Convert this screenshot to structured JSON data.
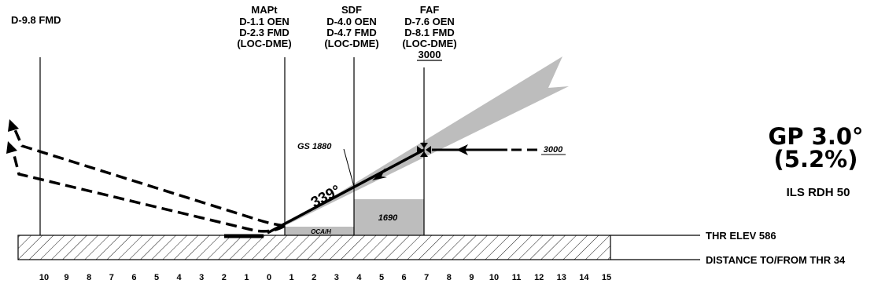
{
  "fixes": {
    "d98": {
      "line1": "D-9.8 FMD"
    },
    "mapt": {
      "line1": "MAPt",
      "line2": "D-1.1 OEN",
      "line3": "D-2.3 FMD",
      "line4": "(LOC-DME)"
    },
    "sdf": {
      "line1": "SDF",
      "line2": "D-4.0 OEN",
      "line3": "D-4.7 FMD",
      "line4": "(LOC-DME)"
    },
    "faf": {
      "line1": "FAF",
      "line2": "D-7.6 OEN",
      "line3": "D-8.1 FMD",
      "line4": "(LOC-DME)",
      "altitude": "3000"
    }
  },
  "glidepath": {
    "angle_label": "GP 3.0°",
    "percent_label": "(5.2%)",
    "rdh_label": "ILS RDH 50"
  },
  "profile": {
    "course": "339°",
    "gs_label": "GS 1880",
    "intermediate_alt": "3000",
    "sdf_box_alt": "1690",
    "oca_label": "OCA/H"
  },
  "runway": {
    "thr_elev": "THR ELEV 586",
    "distance_label": "DISTANCE TO/FROM THR 34"
  },
  "distance_scale": [
    "10",
    "9",
    "8",
    "7",
    "6",
    "5",
    "4",
    "3",
    "2",
    "1",
    "0",
    "1",
    "2",
    "3",
    "4",
    "5",
    "6",
    "7",
    "8",
    "9",
    "10",
    "11",
    "12",
    "13",
    "14",
    "15"
  ],
  "colors": {
    "shading": "#bdbdbd",
    "ink": "#000000"
  }
}
